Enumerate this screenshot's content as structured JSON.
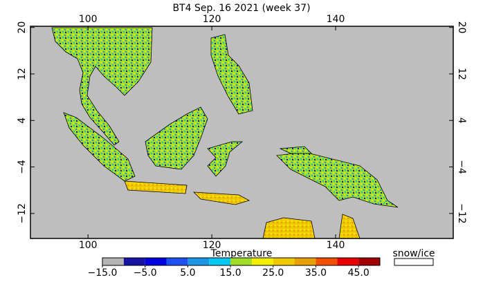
{
  "title": "BT4 Sep. 16 2021 (week 37)",
  "map": {
    "xlim": [
      90.7,
      159
    ],
    "ylim": [
      -16.3,
      20.2
    ],
    "xticks": [
      100,
      120,
      140
    ],
    "yticks": [
      20,
      12,
      4,
      {
        "value": -4,
        "label": "−4"
      },
      {
        "value": -12,
        "label": "−12"
      }
    ]
  },
  "colorbar": {
    "title": "Temperature",
    "bounds": [
      -15,
      -10,
      -5,
      0,
      5,
      10,
      15,
      20,
      25,
      30,
      35,
      40,
      45,
      50
    ],
    "colors": [
      "#b4b4b4",
      "#1414a0",
      "#0000dc",
      "#1e50f0",
      "#1e96e6",
      "#00c8f0",
      "#a0dc28",
      "#f0f000",
      "#f0c800",
      "#e6a000",
      "#f05000",
      "#e60000",
      "#a00000"
    ],
    "ticks": [
      {
        "value": -15,
        "label": "−15.0"
      },
      {
        "value": -5,
        "label": "−5.0"
      },
      {
        "value": 5,
        "label": "5.0"
      },
      {
        "value": 15,
        "label": "15.0"
      },
      {
        "value": 25,
        "label": "25.0"
      },
      {
        "value": 35,
        "label": "35.0"
      },
      {
        "value": 45,
        "label": "45.0"
      }
    ],
    "snow_label": "snow/ice"
  }
}
